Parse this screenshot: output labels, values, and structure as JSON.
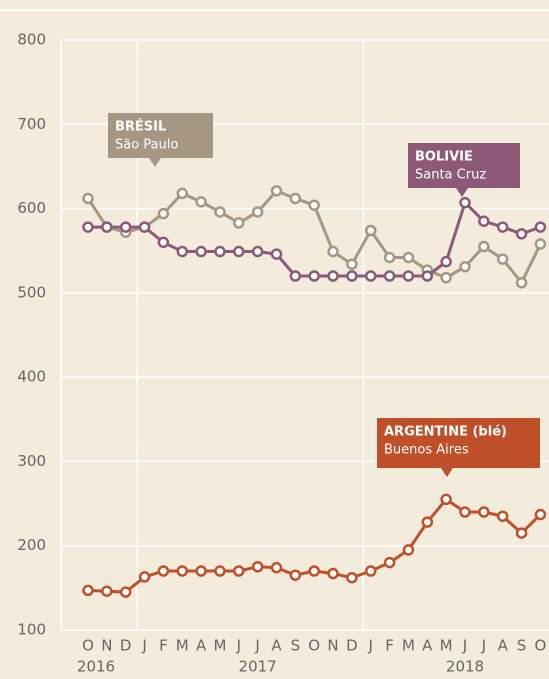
{
  "chart_data": {
    "type": "line",
    "categories": [
      "O",
      "N",
      "D",
      "J",
      "F",
      "M",
      "A",
      "M",
      "J",
      "J",
      "A",
      "S",
      "O",
      "N",
      "D",
      "J",
      "F",
      "M",
      "A",
      "M",
      "J",
      "J",
      "A",
      "S",
      "O"
    ],
    "year_labels": [
      "2016",
      "2017",
      "2018"
    ],
    "ylim": [
      100,
      800
    ],
    "yticks": [
      100,
      200,
      300,
      400,
      500,
      600,
      700,
      800
    ],
    "grid": true,
    "series": [
      {
        "name": "BRÉSIL",
        "place": "São Paulo",
        "color": "#a89684",
        "values": [
          612,
          578,
          572,
          578,
          594,
          618,
          608,
          596,
          583,
          596,
          621,
          612,
          604,
          549,
          534,
          574,
          542,
          542,
          527,
          518,
          531,
          555,
          540,
          512,
          558
        ]
      },
      {
        "name": "BOLIVIE",
        "place": "Santa Cruz",
        "color": "#8c5a78",
        "values": [
          578,
          578,
          578,
          578,
          560,
          549,
          549,
          549,
          549,
          549,
          546,
          520,
          520,
          520,
          520,
          520,
          520,
          520,
          520,
          537,
          607,
          585,
          578,
          570,
          578
        ]
      },
      {
        "name": "ARGENTINE (blé)",
        "place": "Buenos Aires",
        "color": "#c0502a",
        "values": [
          147,
          146,
          145,
          163,
          170,
          170,
          170,
          170,
          170,
          175,
          174,
          165,
          170,
          167,
          162,
          170,
          180,
          195,
          228,
          255,
          240,
          240,
          235,
          215,
          237
        ]
      }
    ]
  }
}
